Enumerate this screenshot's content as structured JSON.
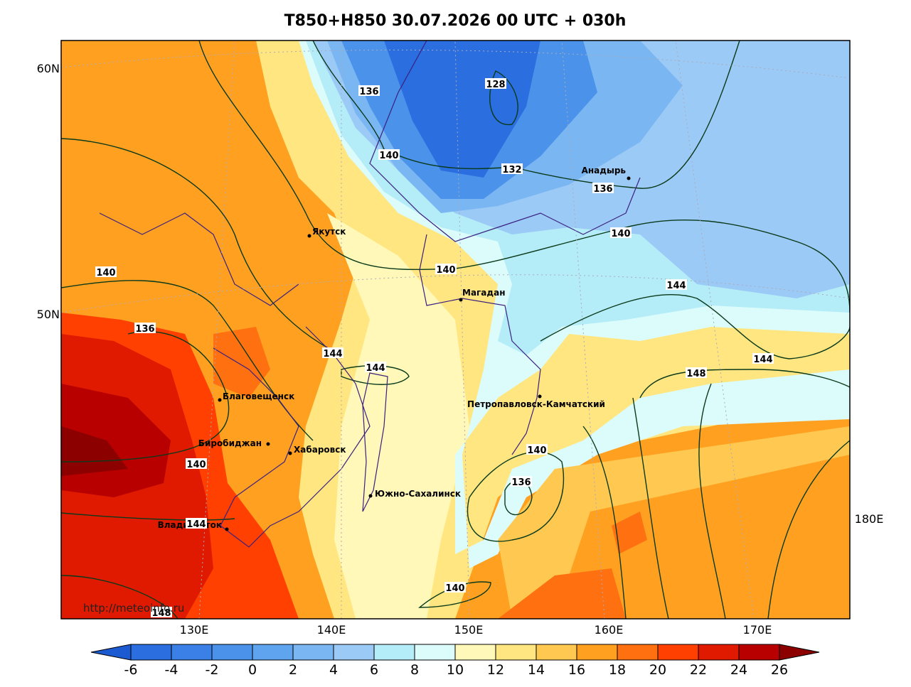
{
  "title": "T850+H850 30.07.2026 00 UTC + 030h",
  "lat_labels": [
    "60N",
    "50N"
  ],
  "lon_labels": [
    "130E",
    "140E",
    "150E",
    "160E",
    "170E",
    "180E"
  ],
  "cities": [
    "Якутск",
    "Магадан",
    "Анадырь",
    "Благовещенск",
    "Биробиджан",
    "Хабаровск",
    "Южно-Сахалинск",
    "Петропавловск-Камчатский",
    "Владивосток"
  ],
  "contour_labels": [
    136,
    128,
    140,
    132,
    136,
    140,
    140,
    140,
    144,
    136,
    144,
    144,
    144,
    148,
    140,
    140,
    136,
    144,
    140,
    148
  ],
  "watermark": "http://meteoinfo.ru",
  "colorbar": {
    "ticks": [
      -6,
      -4,
      -2,
      0,
      2,
      4,
      6,
      8,
      10,
      12,
      14,
      16,
      18,
      20,
      22,
      24,
      26
    ],
    "colors": [
      "#1c5ad2",
      "#2a6ee0",
      "#3a80e6",
      "#4a92ea",
      "#5ea4ee",
      "#7ab6f2",
      "#9ccaf6",
      "#b4ecf8",
      "#dcfcfc",
      "#fff8b8",
      "#ffe680",
      "#ffc850",
      "#ffa020",
      "#ff7010",
      "#ff4000",
      "#e01a00",
      "#b80000",
      "#8c0000"
    ]
  }
}
